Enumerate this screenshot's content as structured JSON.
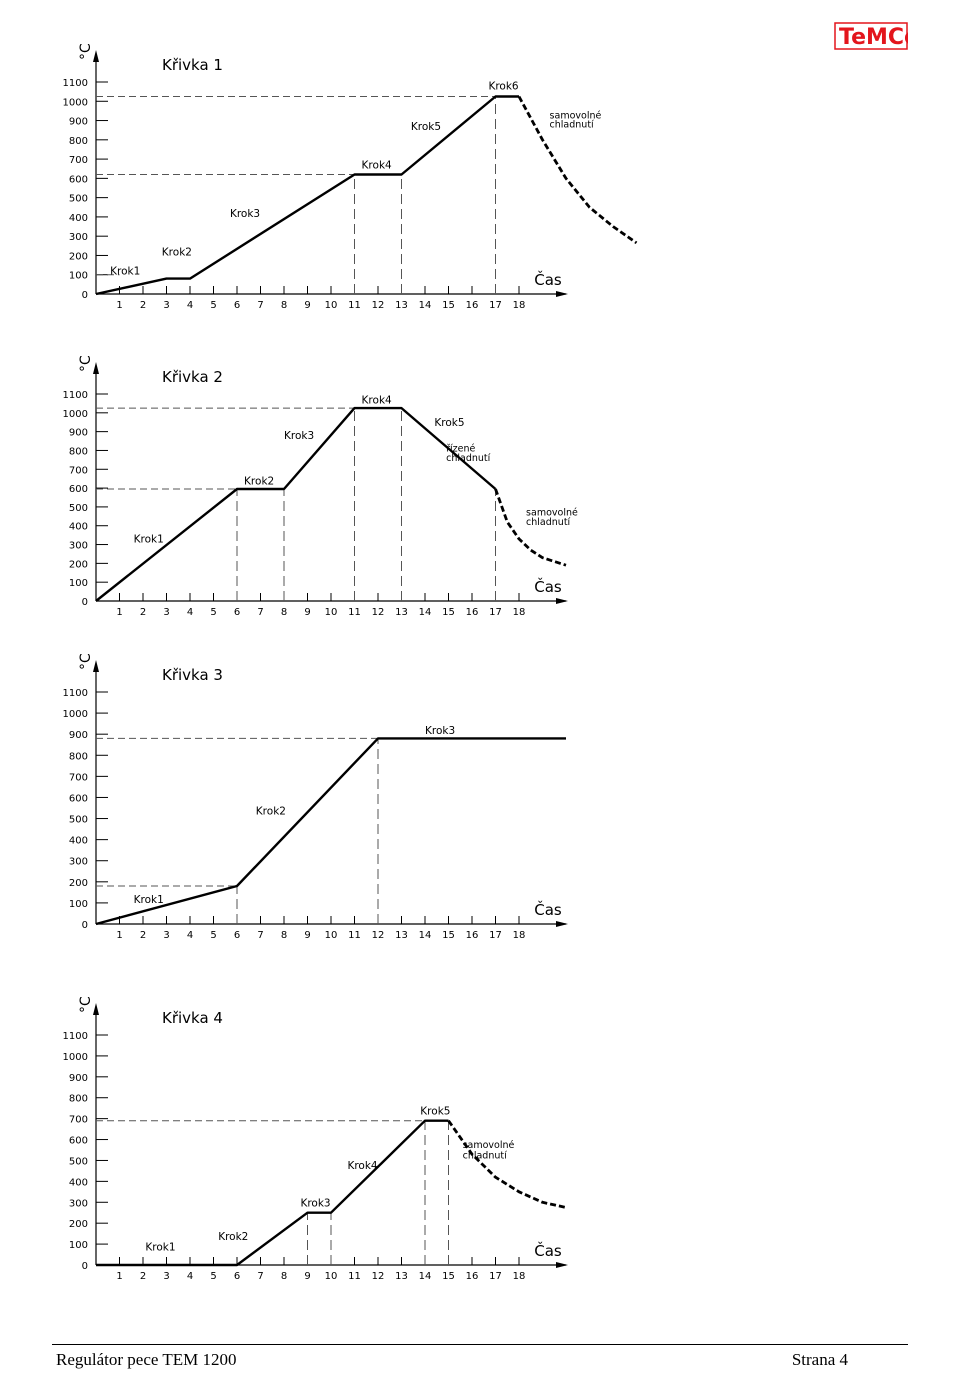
{
  "header": {
    "logo_text": "TeMCo",
    "colors": {
      "logo": "#e3151c"
    }
  },
  "footer": {
    "left": "Regulátor pece TEM 1200",
    "right": "Strana 4"
  },
  "chart_data": [
    {
      "type": "line",
      "title": "Křivka 1",
      "ylabel": "°C",
      "xlabel": "Čas",
      "x_ticks": [
        "1",
        "2",
        "3",
        "4",
        "5",
        "6",
        "7",
        "8",
        "9",
        "10",
        "11",
        "12",
        "13",
        "14",
        "15",
        "16",
        "17",
        "18"
      ],
      "y_ticks": [
        "0",
        "100",
        "200",
        "300",
        "400",
        "500",
        "600",
        "700",
        "800",
        "900",
        "1000",
        "1100"
      ],
      "ylim": [
        0,
        1100
      ],
      "series": [
        {
          "style": "solid",
          "points": [
            [
              0,
              0
            ],
            [
              3,
              80
            ],
            [
              4,
              80
            ],
            [
              11,
              620
            ],
            [
              13,
              620
            ],
            [
              17,
              1025
            ],
            [
              18,
              1025
            ]
          ]
        },
        {
          "style": "dashed",
          "points": [
            [
              18,
              1025
            ],
            [
              19,
              800
            ],
            [
              20,
              600
            ],
            [
              21,
              450
            ],
            [
              22,
              350
            ],
            [
              23,
              265
            ]
          ]
        }
      ],
      "guides": {
        "horizontal": [
          100,
          1025,
          620
        ],
        "vertical": [
          11,
          13,
          17
        ]
      },
      "annotations": [
        {
          "text": "Krok1",
          "x": 0.6,
          "y": 100
        },
        {
          "text": "Krok2",
          "x": 2.8,
          "y": 200
        },
        {
          "text": "Krok3",
          "x": 5.7,
          "y": 400
        },
        {
          "text": "Krok4",
          "x": 11.3,
          "y": 650
        },
        {
          "text": "Krok5",
          "x": 13.4,
          "y": 850
        },
        {
          "text": "Krok6",
          "x": 16.7,
          "y": 1060
        },
        {
          "text": "samovolné",
          "x": 19.3,
          "y": 910
        },
        {
          "text": "chladnutí",
          "x": 19.3,
          "y": 865
        }
      ]
    },
    {
      "type": "line",
      "title": "Křivka 2",
      "ylabel": "°C",
      "xlabel": "Čas",
      "x_ticks": [
        "1",
        "2",
        "3",
        "4",
        "5",
        "6",
        "7",
        "8",
        "9",
        "10",
        "11",
        "12",
        "13",
        "14",
        "15",
        "16",
        "17",
        "18"
      ],
      "y_ticks": [
        "0",
        "100",
        "200",
        "300",
        "400",
        "500",
        "600",
        "700",
        "800",
        "900",
        "1000",
        "1100"
      ],
      "ylim": [
        0,
        1100
      ],
      "series": [
        {
          "style": "solid",
          "points": [
            [
              0,
              0
            ],
            [
              6,
              595
            ],
            [
              8,
              595
            ],
            [
              11,
              1025
            ],
            [
              13,
              1025
            ],
            [
              17,
              595
            ]
          ]
        },
        {
          "style": "dashed",
          "points": [
            [
              17,
              595
            ],
            [
              17.5,
              420
            ],
            [
              18,
              330
            ],
            [
              18.5,
              270
            ],
            [
              19,
              230
            ],
            [
              20,
              190
            ]
          ]
        }
      ],
      "guides": {
        "horizontal": [
          595,
          1025
        ],
        "vertical": [
          6,
          8,
          11,
          13,
          17
        ]
      },
      "annotations": [
        {
          "text": "Krok1",
          "x": 1.6,
          "y": 310
        },
        {
          "text": "Krok2",
          "x": 6.3,
          "y": 620
        },
        {
          "text": "Krok3",
          "x": 8.0,
          "y": 860
        },
        {
          "text": "Krok4",
          "x": 11.3,
          "y": 1050
        },
        {
          "text": "Krok5",
          "x": 14.4,
          "y": 930
        },
        {
          "text": "řízené",
          "x": 14.9,
          "y": 795
        },
        {
          "text": "chladnutí",
          "x": 14.9,
          "y": 745
        },
        {
          "text": "samovolné",
          "x": 18.3,
          "y": 455
        },
        {
          "text": "chladnutí",
          "x": 18.3,
          "y": 405
        }
      ]
    },
    {
      "type": "line",
      "title": "Křivka 3",
      "ylabel": "°C",
      "xlabel": "Čas",
      "x_ticks": [
        "1",
        "2",
        "3",
        "4",
        "5",
        "6",
        "7",
        "8",
        "9",
        "10",
        "11",
        "12",
        "13",
        "14",
        "15",
        "16",
        "17",
        "18"
      ],
      "y_ticks": [
        "0",
        "100",
        "200",
        "300",
        "400",
        "500",
        "600",
        "700",
        "800",
        "900",
        "1000",
        "1100"
      ],
      "ylim": [
        0,
        1100
      ],
      "series": [
        {
          "style": "solid",
          "points": [
            [
              0,
              0
            ],
            [
              6,
              180
            ],
            [
              12,
              880
            ],
            [
              20,
              880
            ]
          ]
        }
      ],
      "guides": {
        "horizontal": [
          180,
          880
        ],
        "vertical": [
          6,
          12
        ]
      },
      "annotations": [
        {
          "text": "Krok1",
          "x": 1.6,
          "y": 100
        },
        {
          "text": "Krok2",
          "x": 6.8,
          "y": 520
        },
        {
          "text": "Krok3",
          "x": 14.0,
          "y": 900
        }
      ]
    },
    {
      "type": "line",
      "title": "Křivka 4",
      "ylabel": "°C",
      "xlabel": "Čas",
      "x_ticks": [
        "1",
        "2",
        "3",
        "4",
        "5",
        "6",
        "7",
        "8",
        "9",
        "10",
        "11",
        "12",
        "13",
        "14",
        "15",
        "16",
        "17",
        "18"
      ],
      "y_ticks": [
        "0",
        "100",
        "200",
        "300",
        "400",
        "500",
        "600",
        "700",
        "800",
        "900",
        "1000",
        "1100"
      ],
      "ylim": [
        0,
        1100
      ],
      "series": [
        {
          "style": "solid",
          "points": [
            [
              0,
              0
            ],
            [
              6,
              0
            ],
            [
              9,
              250
            ],
            [
              10,
              250
            ],
            [
              14,
              690
            ],
            [
              15,
              690
            ]
          ]
        },
        {
          "style": "dashed",
          "points": [
            [
              15,
              690
            ],
            [
              16,
              530
            ],
            [
              17,
              420
            ],
            [
              18,
              350
            ],
            [
              19,
              300
            ],
            [
              20,
              275
            ]
          ]
        }
      ],
      "guides": {
        "horizontal": [
          690
        ],
        "vertical": [
          6,
          9,
          10,
          14,
          15
        ]
      },
      "annotations": [
        {
          "text": "Krok1",
          "x": 2.1,
          "y": 70
        },
        {
          "text": "Krok2",
          "x": 5.2,
          "y": 120
        },
        {
          "text": "Krok3",
          "x": 8.7,
          "y": 280
        },
        {
          "text": "Krok4",
          "x": 10.7,
          "y": 460
        },
        {
          "text": "Krok5",
          "x": 13.8,
          "y": 720
        },
        {
          "text": "samovolné",
          "x": 15.6,
          "y": 560
        },
        {
          "text": "chladnutí",
          "x": 15.6,
          "y": 510
        }
      ]
    }
  ]
}
